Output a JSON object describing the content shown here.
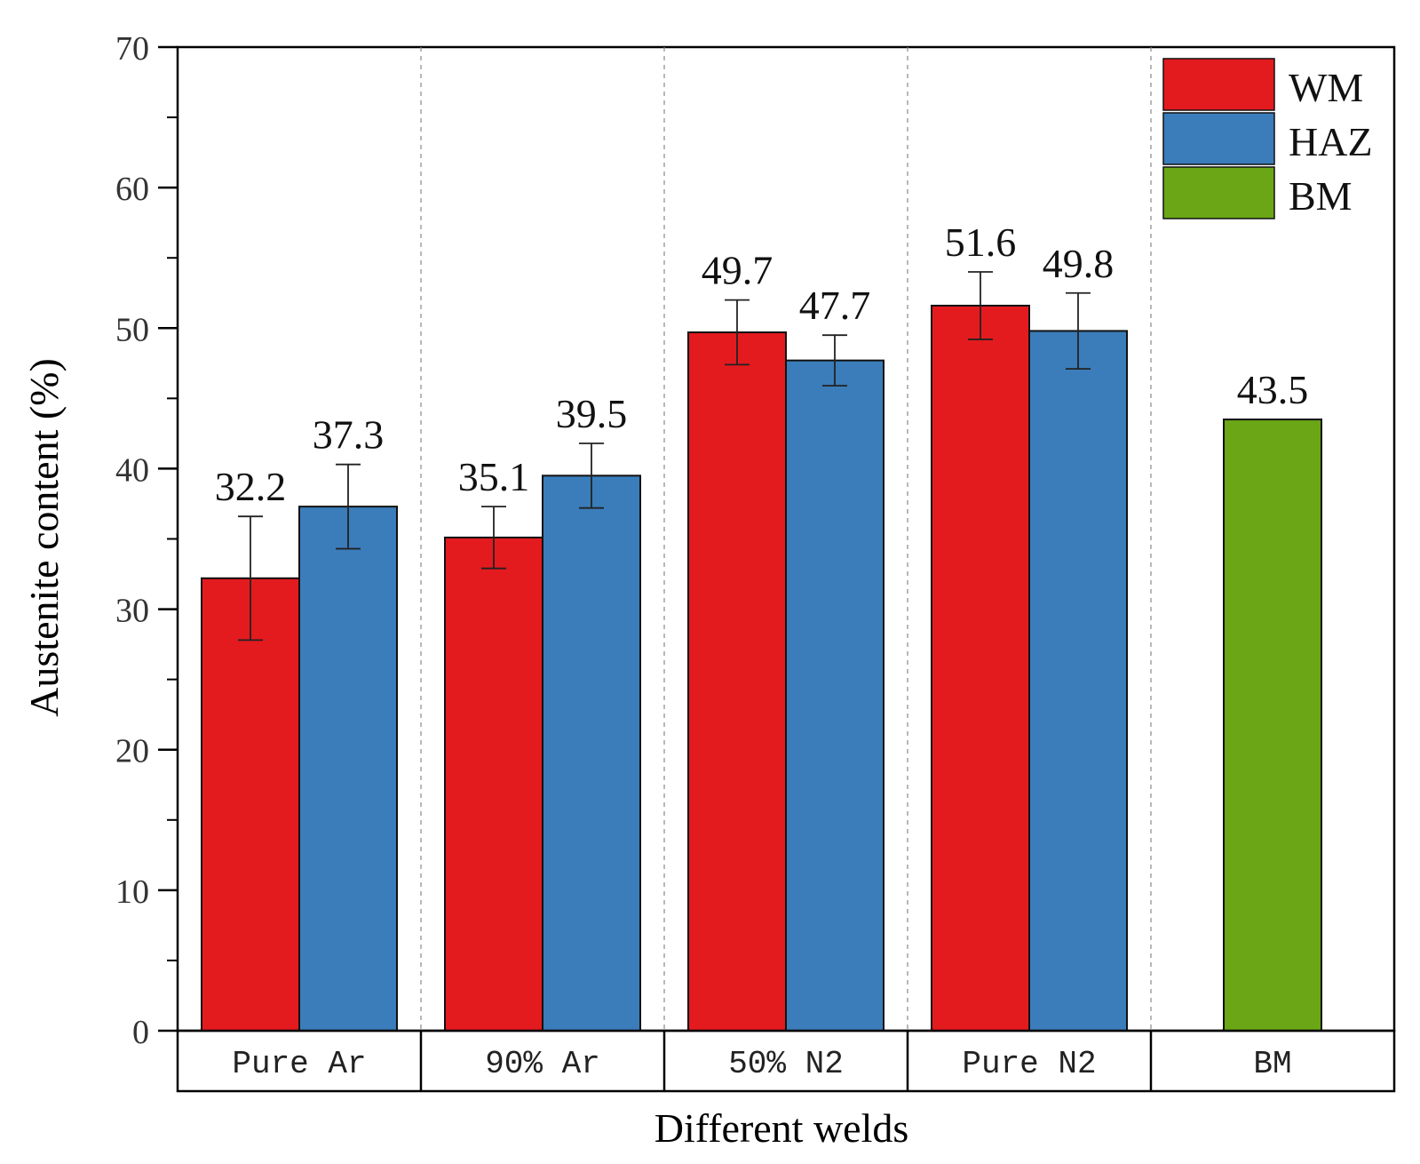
{
  "chart_data": {
    "type": "bar",
    "ylabel": "Austenite content (%)",
    "xlabel": "Different welds",
    "ylim": [
      0,
      70
    ],
    "yticks": [
      0,
      10,
      20,
      30,
      40,
      50,
      60,
      70
    ],
    "categories": [
      "Pure Ar",
      "90% Ar",
      "50% N2",
      "Pure N2",
      "BM"
    ],
    "series": [
      {
        "name": "WM",
        "color": "#e31b1f",
        "values": [
          32.2,
          35.1,
          49.7,
          51.6,
          null
        ],
        "errors": [
          4.4,
          2.2,
          2.3,
          2.4,
          null
        ],
        "labels": [
          "32.2",
          "35.1",
          "49.7",
          "51.6",
          null
        ]
      },
      {
        "name": "HAZ",
        "color": "#3a7dba",
        "values": [
          37.3,
          39.5,
          47.7,
          49.8,
          null
        ],
        "errors": [
          3.0,
          2.3,
          1.8,
          2.7,
          null
        ],
        "labels": [
          "37.3",
          "39.5",
          "47.7",
          "49.8",
          null
        ]
      },
      {
        "name": "BM",
        "color": "#6aa616",
        "values": [
          null,
          null,
          null,
          null,
          43.5
        ],
        "errors": [
          null,
          null,
          null,
          null,
          null
        ],
        "labels": [
          null,
          null,
          null,
          null,
          "43.5"
        ]
      }
    ],
    "legend": {
      "position": "top-right",
      "entries": [
        "WM",
        "HAZ",
        "BM"
      ]
    },
    "grid": false
  }
}
